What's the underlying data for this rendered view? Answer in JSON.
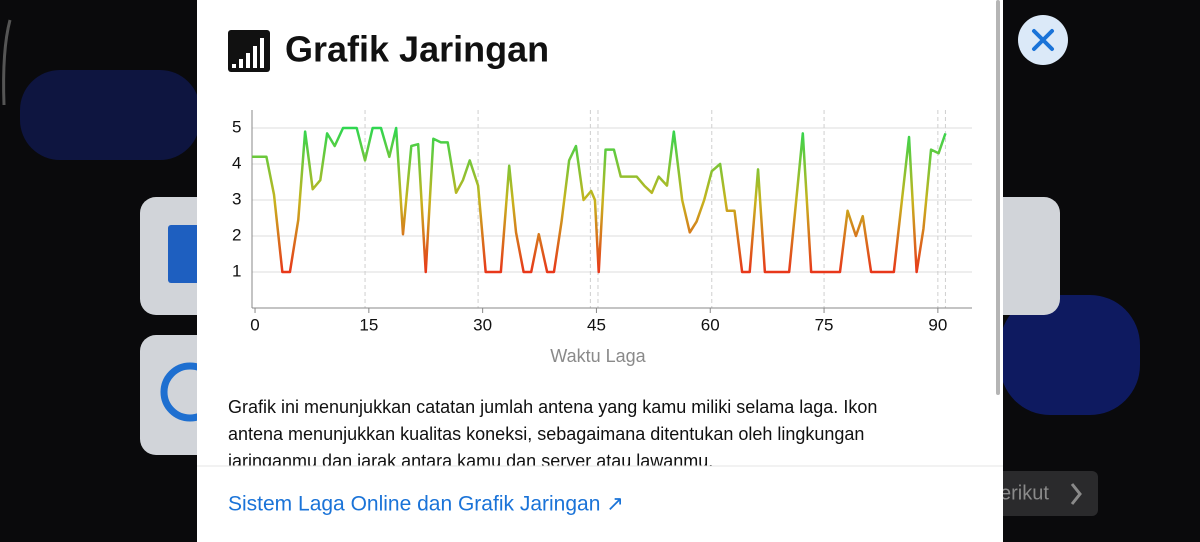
{
  "dialog": {
    "title": "Grafik Jaringan",
    "description_lines": [
      "Grafik ini menunjukkan catatan jumlah antena yang kamu miliki selama laga. Ikon",
      "antena menunjukkan kualitas koneksi, sebagaimana ditentukan oleh lingkungan",
      "jaringanmu dan jarak antara kamu dan server atau lawanmu."
    ],
    "link": "Sistem Laga Online dan Grafik Jaringan ↗"
  },
  "background": {
    "button": "erikut"
  },
  "chart_data": {
    "type": "line",
    "x_label": "Waktu Laga",
    "x": [
      -0.4,
      1.5,
      2.5,
      3.6,
      4.6,
      5.7,
      6.6,
      7.6,
      8.6,
      9.5,
      10.5,
      11.6,
      13.4,
      14.5,
      15.5,
      16.6,
      17.7,
      18.6,
      19.5,
      20.6,
      21.5,
      22.5,
      23.5,
      24.5,
      25.4,
      26.5,
      27.4,
      28.3,
      29.4,
      30.4,
      32.4,
      33.5,
      34.4,
      35.4,
      36.4,
      37.4,
      38.5,
      39.4,
      40.4,
      41.4,
      42.3,
      43.3,
      44.3,
      44.8,
      45.3,
      46.2,
      47.3,
      48.2,
      49.3,
      50.3,
      51.3,
      52.3,
      53.2,
      54.3,
      55.2,
      56.3,
      57.3,
      58.2,
      59.2,
      60.2,
      61.3,
      62.2,
      63.2,
      64.2,
      65.2,
      66.3,
      67.2,
      70.4,
      72.2,
      73.3,
      77.1,
      78.1,
      79.2,
      80.1,
      81.2,
      84.2,
      86.2,
      87.2,
      88.1,
      89.1,
      90.1,
      91.0
    ],
    "values": [
      4.2,
      4.2,
      3.15,
      1,
      1,
      2.45,
      4.9,
      3.3,
      3.55,
      4.85,
      4.5,
      5,
      5,
      4.1,
      5,
      5,
      4.2,
      5,
      2.05,
      4.5,
      4.55,
      1,
      4.7,
      4.6,
      4.6,
      3.2,
      3.55,
      4.1,
      3.4,
      1,
      1,
      3.95,
      2.1,
      1,
      1,
      2.05,
      1,
      1,
      2.4,
      4.1,
      4.5,
      3,
      3.25,
      3,
      1,
      4.4,
      4.4,
      3.65,
      3.65,
      3.65,
      3.4,
      3.2,
      3.65,
      3.4,
      4.9,
      3,
      2.1,
      2.4,
      3,
      3.8,
      4,
      2.7,
      2.7,
      1,
      1,
      3.85,
      1,
      1,
      4.85,
      1,
      1,
      2.7,
      2,
      2.55,
      1,
      1,
      4.75,
      1,
      2.2,
      4.4,
      4.3,
      4.85
    ],
    "gradient_colors": [
      "#2fd650",
      "#c7b41e",
      "#e8361a"
    ],
    "xlim": [
      -0.4,
      94.5
    ],
    "ylim": [
      0,
      5.5
    ],
    "xticks": [
      0,
      15,
      30,
      45,
      60,
      75,
      90
    ],
    "yticks": [
      1,
      2,
      3,
      4,
      5
    ],
    "markers": [
      14.5,
      29.4,
      44.2,
      45.2,
      60.2,
      75,
      90,
      91
    ],
    "grid": true
  }
}
